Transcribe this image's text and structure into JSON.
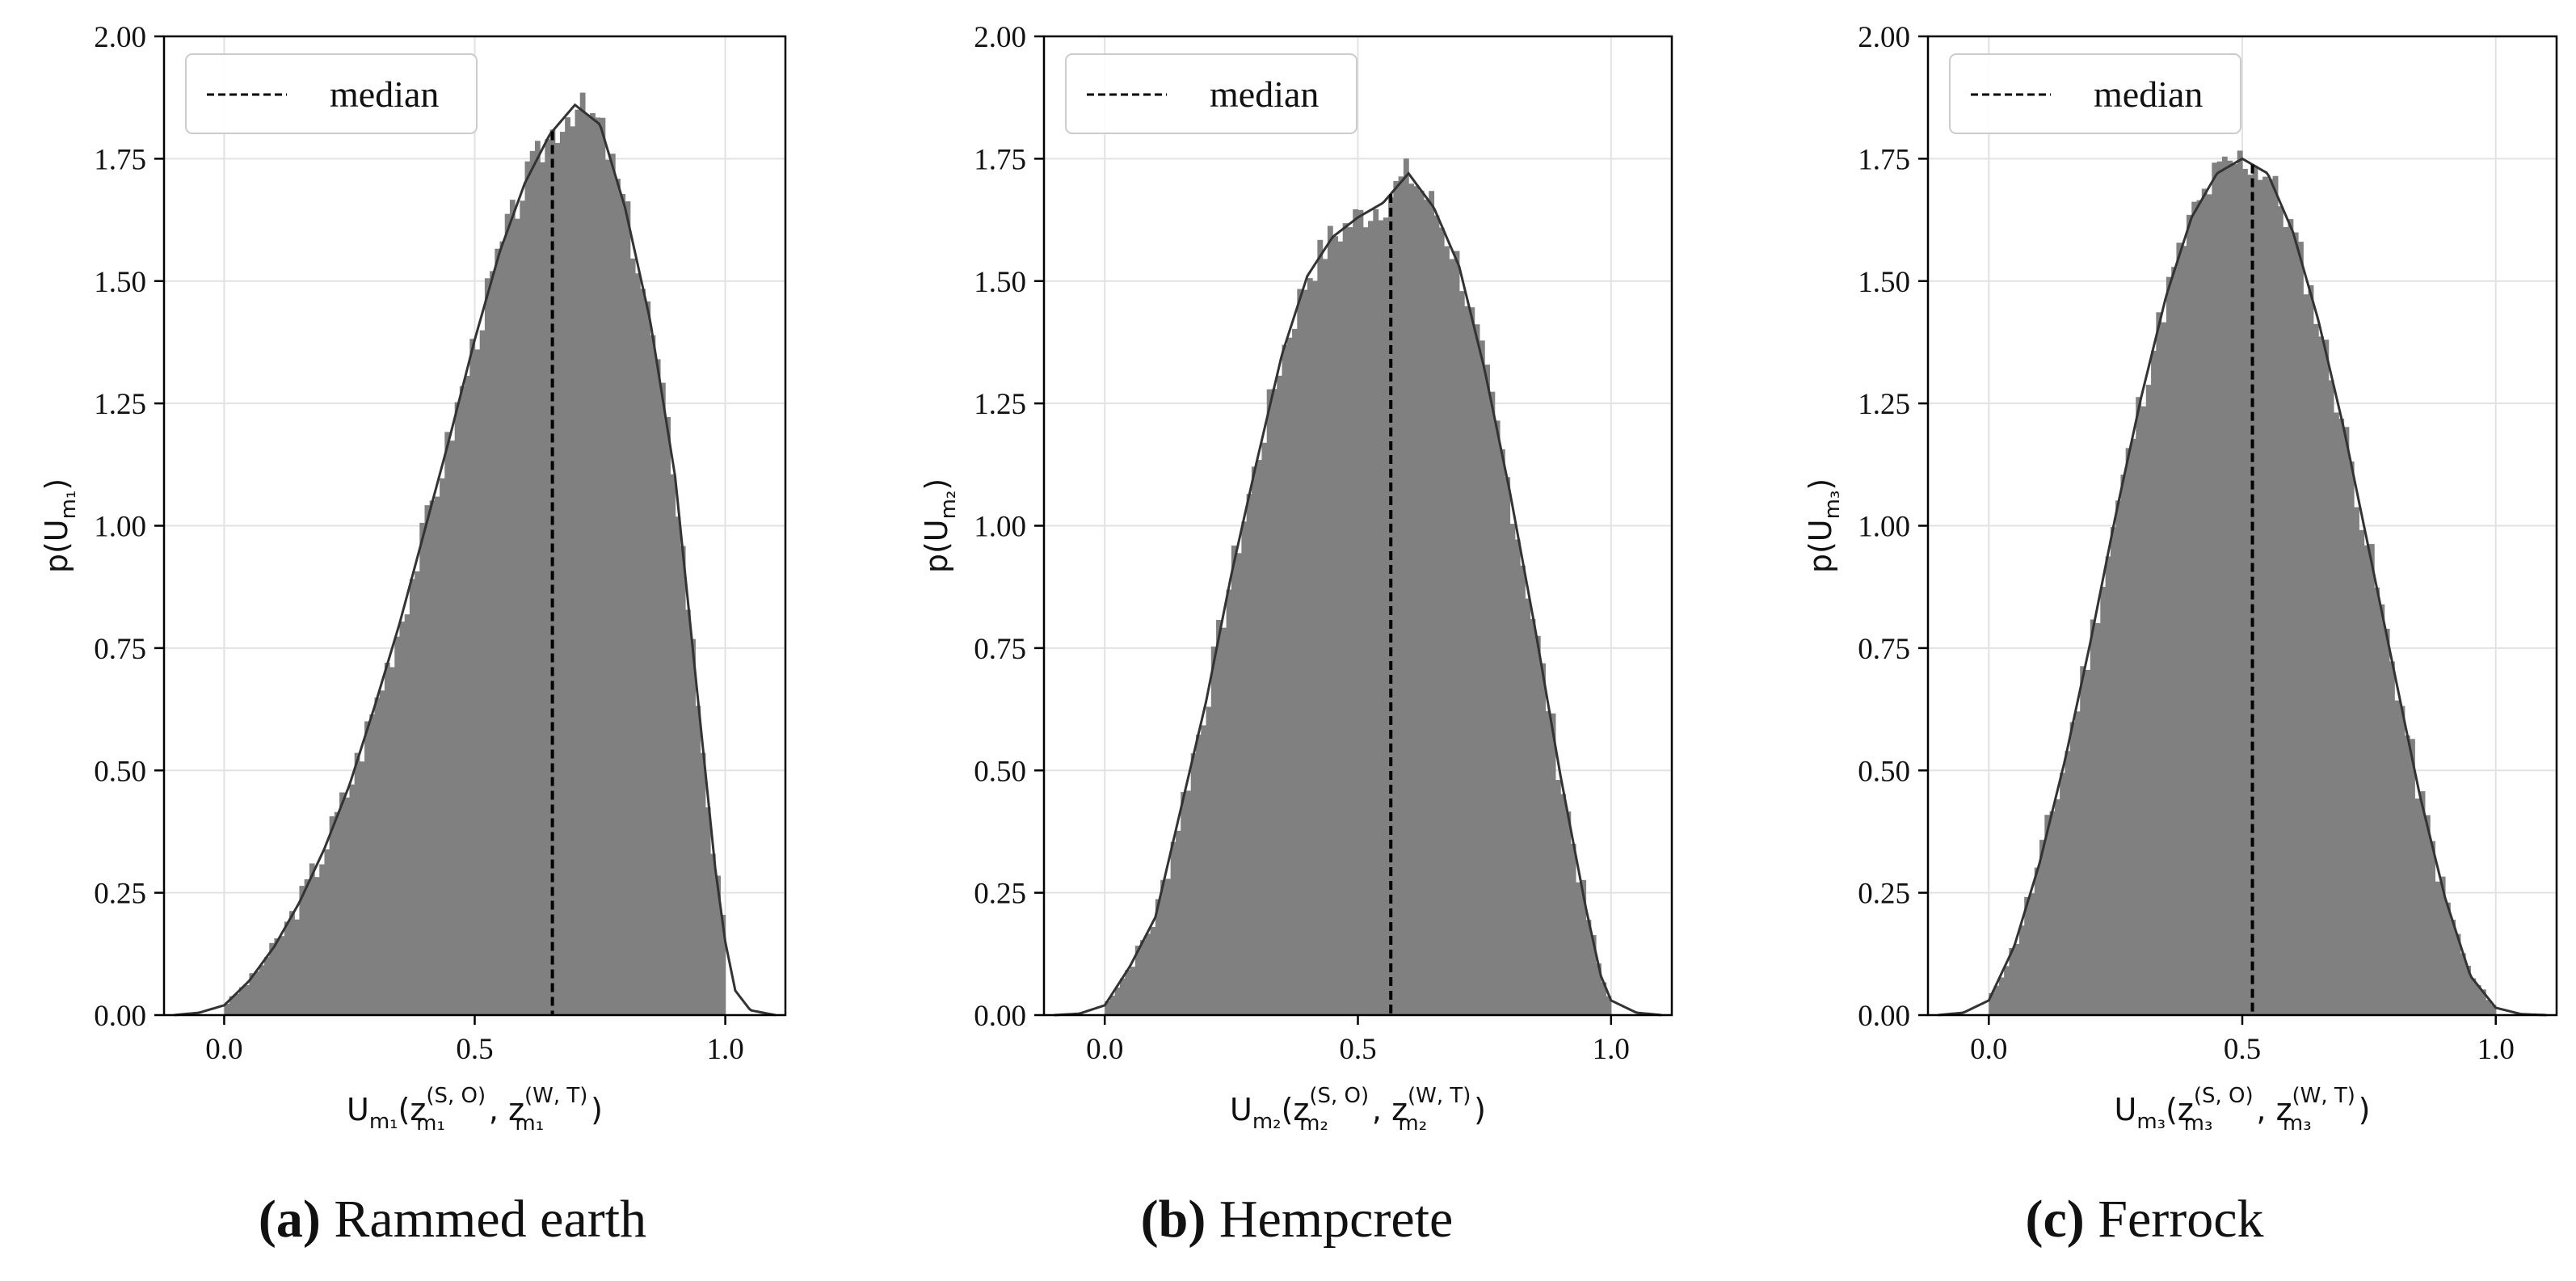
{
  "legend_label": "median",
  "colors": {
    "bar": "#808080",
    "kde": "#333333",
    "grid": "#e2e2e2",
    "median": "#000000"
  },
  "chart_data": [
    {
      "type": "bar",
      "title": "",
      "caption_letter": "(a)",
      "caption_text": "Rammed earth",
      "xlabel": {
        "main": "U",
        "sub": "m₁",
        "arg": "(z",
        "sup1": "(S, O)",
        "sub1": "m₁",
        "sep": ", z",
        "sup2": "(W, T)",
        "sub2": "m₁",
        "end": ")"
      },
      "ylabel": {
        "pre": "p(U",
        "sub": "m₁",
        "post": ")"
      },
      "xlim": [
        -0.12,
        1.12
      ],
      "ylim": [
        0,
        2.0
      ],
      "xticks": [
        "0.0",
        "0.5",
        "1.0"
      ],
      "yticks": [
        "0.00",
        "0.25",
        "0.50",
        "0.75",
        "1.00",
        "1.25",
        "1.50",
        "1.75",
        "2.00"
      ],
      "median": 0.655,
      "kde": {
        "x": [
          -0.1,
          -0.05,
          0.0,
          0.05,
          0.1,
          0.15,
          0.2,
          0.25,
          0.3,
          0.35,
          0.4,
          0.45,
          0.5,
          0.55,
          0.6,
          0.65,
          0.7,
          0.75,
          0.8,
          0.85,
          0.9,
          0.95,
          0.98,
          1.0,
          1.02,
          1.05,
          1.1
        ],
        "y": [
          0.0,
          0.005,
          0.02,
          0.07,
          0.14,
          0.23,
          0.34,
          0.47,
          0.63,
          0.8,
          0.99,
          1.18,
          1.38,
          1.56,
          1.7,
          1.8,
          1.86,
          1.82,
          1.65,
          1.42,
          1.1,
          0.6,
          0.3,
          0.15,
          0.05,
          0.01,
          0.0
        ]
      },
      "bins": {
        "start": 0.0,
        "end": 1.0,
        "count": 100,
        "jitter_seed": 3
      }
    },
    {
      "type": "bar",
      "title": "",
      "caption_letter": "(b)",
      "caption_text": "Hempcrete",
      "xlabel": {
        "main": "U",
        "sub": "m₂",
        "arg": "(z",
        "sup1": "(S, O)",
        "sub1": "m₂",
        "sep": ", z",
        "sup2": "(W, T)",
        "sub2": "m₂",
        "end": ")"
      },
      "ylabel": {
        "pre": "p(U",
        "sub": "m₂",
        "post": ")"
      },
      "xlim": [
        -0.12,
        1.12
      ],
      "ylim": [
        0,
        2.0
      ],
      "xticks": [
        "0.0",
        "0.5",
        "1.0"
      ],
      "yticks": [
        "0.00",
        "0.25",
        "0.50",
        "0.75",
        "1.00",
        "1.25",
        "1.50",
        "1.75",
        "2.00"
      ],
      "median": 0.565,
      "kde": {
        "x": [
          -0.1,
          -0.05,
          0.0,
          0.05,
          0.1,
          0.15,
          0.2,
          0.25,
          0.3,
          0.35,
          0.4,
          0.45,
          0.5,
          0.55,
          0.6,
          0.65,
          0.7,
          0.75,
          0.8,
          0.85,
          0.9,
          0.95,
          0.98,
          1.0,
          1.05,
          1.1
        ],
        "y": [
          0.0,
          0.003,
          0.02,
          0.1,
          0.2,
          0.42,
          0.64,
          0.9,
          1.13,
          1.35,
          1.51,
          1.59,
          1.63,
          1.66,
          1.72,
          1.65,
          1.53,
          1.32,
          1.07,
          0.79,
          0.49,
          0.22,
          0.08,
          0.03,
          0.005,
          0.0
        ]
      },
      "bins": {
        "start": 0.0,
        "end": 1.0,
        "count": 100,
        "jitter_seed": 7
      }
    },
    {
      "type": "bar",
      "title": "",
      "caption_letter": "(c)",
      "caption_text": "Ferrock",
      "xlabel": {
        "main": "U",
        "sub": "m₃",
        "arg": "(z",
        "sup1": "(S, O)",
        "sub1": "m₃",
        "sep": ", z",
        "sup2": "(W, T)",
        "sub2": "m₃",
        "end": ")"
      },
      "ylabel": {
        "pre": "p(U",
        "sub": "m₃",
        "post": ")"
      },
      "xlim": [
        -0.12,
        1.12
      ],
      "ylim": [
        0,
        2.0
      ],
      "xticks": [
        "0.0",
        "0.5",
        "1.0"
      ],
      "yticks": [
        "0.00",
        "0.25",
        "0.50",
        "0.75",
        "1.00",
        "1.25",
        "1.50",
        "1.75",
        "2.00"
      ],
      "median": 0.52,
      "kde": {
        "x": [
          -0.1,
          -0.05,
          0.0,
          0.05,
          0.1,
          0.15,
          0.2,
          0.25,
          0.3,
          0.35,
          0.4,
          0.45,
          0.5,
          0.55,
          0.6,
          0.65,
          0.7,
          0.75,
          0.8,
          0.85,
          0.9,
          0.95,
          1.0,
          1.05,
          1.1
        ],
        "y": [
          0.0,
          0.005,
          0.03,
          0.14,
          0.31,
          0.52,
          0.76,
          1.02,
          1.26,
          1.47,
          1.63,
          1.72,
          1.75,
          1.72,
          1.6,
          1.42,
          1.2,
          0.95,
          0.7,
          0.45,
          0.24,
          0.08,
          0.015,
          0.002,
          0.0
        ]
      },
      "bins": {
        "start": 0.0,
        "end": 1.0,
        "count": 100,
        "jitter_seed": 11
      }
    }
  ]
}
